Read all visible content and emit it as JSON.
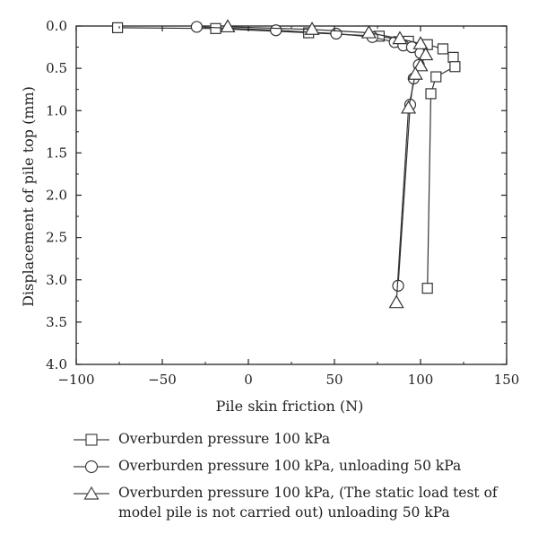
{
  "chart_data": {
    "type": "line",
    "xlabel": "Pile skin friction (N)",
    "ylabel": "Displacement of pile top (mm)",
    "xlim": [
      -100,
      150
    ],
    "ylim": [
      0,
      4.0
    ],
    "y_inverted": true,
    "x_ticks": [
      -100,
      -50,
      0,
      50,
      100,
      150
    ],
    "x_tick_labels": [
      "−100",
      "−50",
      "0",
      "50",
      "100",
      "150"
    ],
    "y_ticks": [
      0,
      0.5,
      1.0,
      1.5,
      2.0,
      2.5,
      3.0,
      3.5,
      4.0
    ],
    "y_tick_labels": [
      "0.0",
      "0.5",
      "1.0",
      "1.5",
      "2.0",
      "2.5",
      "3.0",
      "3.5",
      "4.0"
    ],
    "grid": false,
    "legend_position": "below",
    "series": [
      {
        "name": "Overburden pressure 100 kPa",
        "marker": "square",
        "x": [
          -76,
          -19,
          35,
          76,
          93,
          104,
          113,
          119,
          120,
          109,
          106,
          104
        ],
        "y": [
          0.02,
          0.03,
          0.08,
          0.12,
          0.18,
          0.22,
          0.27,
          0.37,
          0.48,
          0.6,
          0.8,
          3.1
        ]
      },
      {
        "name": "Overburden pressure 100 kPa, unloading 50 kPa",
        "marker": "circle",
        "x": [
          -30,
          16,
          51,
          72,
          85,
          90,
          95,
          100,
          99,
          96,
          94,
          87
        ],
        "y": [
          0.01,
          0.05,
          0.09,
          0.13,
          0.19,
          0.23,
          0.25,
          0.32,
          0.46,
          0.62,
          0.93,
          3.07
        ]
      },
      {
        "name": "Overburden pressure 100 kPa, (The static load test of model pile is not carried out) unloading 50 kPa",
        "marker": "triangle",
        "x": [
          -12,
          37,
          70,
          88,
          100,
          103,
          100,
          97,
          93,
          86
        ],
        "y": [
          0.01,
          0.04,
          0.08,
          0.15,
          0.21,
          0.34,
          0.47,
          0.57,
          0.97,
          3.27
        ]
      }
    ]
  },
  "legend": {
    "items": [
      {
        "marker": "square",
        "lines": [
          "Overburden pressure 100 kPa"
        ]
      },
      {
        "marker": "circle",
        "lines": [
          "Overburden pressure 100 kPa, unloading 50 kPa"
        ]
      },
      {
        "marker": "triangle",
        "lines": [
          "Overburden pressure 100 kPa, (The static load test of",
          "model pile is not carried out) unloading 50 kPa"
        ]
      }
    ]
  }
}
